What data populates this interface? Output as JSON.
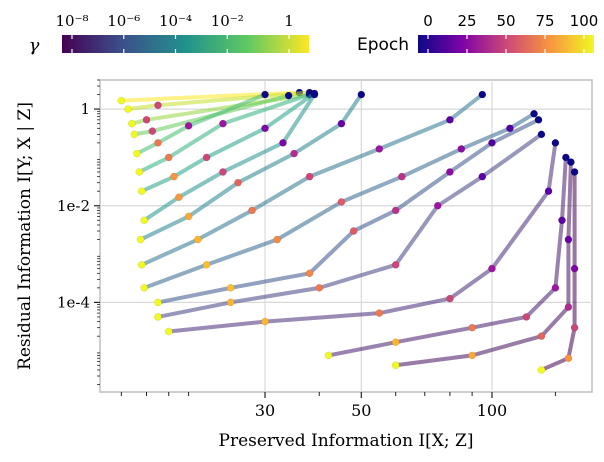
{
  "chart_data": {
    "type": "scatter",
    "xlabel": "Preserved Information I[X; Z]",
    "ylabel": "Residual Information I[Y; X | Z]",
    "x_scale": "log",
    "y_scale": "log",
    "xlim": [
      12.5,
      170
    ],
    "ylim": [
      1.4e-06,
      4
    ],
    "x_ticks": [
      30,
      50,
      100
    ],
    "x_tick_labels": [
      "30",
      "50",
      "100"
    ],
    "x_minor_ticks": [
      14,
      16,
      18,
      20,
      40,
      60,
      70,
      80,
      90,
      140
    ],
    "y_ticks": [
      1,
      0.01,
      0.0001
    ],
    "y_tick_labels": [
      "1",
      "1e-2",
      "1e-4"
    ],
    "grid": true,
    "colorbars": [
      {
        "label": "γ",
        "colormap": "viridis",
        "scale": "log",
        "tick_labels": [
          "10⁻⁸",
          "10⁻⁶",
          "10⁻⁴",
          "10⁻²",
          "1"
        ]
      },
      {
        "label": "Epoch",
        "colormap": "plasma",
        "scale": "linear",
        "tick_labels": [
          "0",
          "25",
          "50",
          "75",
          "100"
        ]
      }
    ],
    "series": [
      {
        "gamma_exp": 0,
        "points": [
          [
            14,
            1.5
          ],
          [
            36,
            2.2
          ]
        ]
      },
      {
        "gamma_exp": -0.7,
        "points": [
          [
            14.5,
            1.0
          ],
          [
            17,
            1.2
          ],
          [
            38,
            2.2
          ]
        ]
      },
      {
        "gamma_exp": -1.3,
        "points": [
          [
            14.8,
            0.5
          ],
          [
            16,
            0.6
          ],
          [
            38,
            2.0
          ]
        ]
      },
      {
        "gamma_exp": -1.9,
        "points": [
          [
            15.0,
            0.3
          ],
          [
            16.5,
            0.35
          ],
          [
            34,
            1.9
          ]
        ]
      },
      {
        "gamma_exp": -2.4,
        "points": [
          [
            15.2,
            0.12
          ],
          [
            17,
            0.2
          ],
          [
            20,
            0.45
          ],
          [
            30,
            2.0
          ]
        ]
      },
      {
        "gamma_exp": -2.9,
        "points": [
          [
            15.4,
            0.05
          ],
          [
            18,
            0.1
          ],
          [
            24,
            0.5
          ],
          [
            38,
            2.0
          ]
        ]
      },
      {
        "gamma_exp": -3.4,
        "points": [
          [
            15.6,
            0.02
          ],
          [
            18.5,
            0.04
          ],
          [
            22,
            0.1
          ],
          [
            30,
            0.4
          ],
          [
            39,
            2.1
          ]
        ]
      },
      {
        "gamma_exp": -3.9,
        "points": [
          [
            15.8,
            0.005
          ],
          [
            19,
            0.015
          ],
          [
            24,
            0.05
          ],
          [
            33,
            0.2
          ],
          [
            39,
            2.0
          ]
        ]
      },
      {
        "gamma_exp": -4.4,
        "points": [
          [
            15.5,
            0.002
          ],
          [
            20,
            0.006
          ],
          [
            26,
            0.03
          ],
          [
            35,
            0.12
          ],
          [
            45,
            0.5
          ],
          [
            50,
            2.0
          ]
        ]
      },
      {
        "gamma_exp": -4.9,
        "points": [
          [
            15.6,
            0.0006
          ],
          [
            21,
            0.002
          ],
          [
            28,
            0.008
          ],
          [
            38,
            0.04
          ],
          [
            55,
            0.15
          ],
          [
            80,
            0.6
          ],
          [
            95,
            2.0
          ]
        ]
      },
      {
        "gamma_exp": -5.4,
        "points": [
          [
            15.8,
            0.0002
          ],
          [
            22,
            0.0006
          ],
          [
            32,
            0.002
          ],
          [
            45,
            0.012
          ],
          [
            62,
            0.04
          ],
          [
            85,
            0.15
          ],
          [
            110,
            0.4
          ],
          [
            125,
            0.8
          ]
        ]
      },
      {
        "gamma_exp": -5.9,
        "points": [
          [
            17,
            0.0001
          ],
          [
            25,
            0.0002
          ],
          [
            38,
            0.0004
          ],
          [
            48,
            0.003
          ],
          [
            60,
            0.008
          ],
          [
            80,
            0.05
          ],
          [
            100,
            0.2
          ],
          [
            128,
            0.6
          ]
        ]
      },
      {
        "gamma_exp": -6.5,
        "points": [
          [
            17,
            5e-05
          ],
          [
            25,
            0.0001
          ],
          [
            40,
            0.0002
          ],
          [
            60,
            0.0006
          ],
          [
            75,
            0.01
          ],
          [
            95,
            0.04
          ],
          [
            130,
            0.3
          ]
        ]
      },
      {
        "gamma_exp": -7.0,
        "points": [
          [
            18,
            2.5e-05
          ],
          [
            30,
            4e-05
          ],
          [
            55,
            6e-05
          ],
          [
            80,
            0.00012
          ],
          [
            100,
            0.0005
          ],
          [
            135,
            0.02
          ],
          [
            140,
            0.2
          ]
        ]
      },
      {
        "gamma_exp": -7.4,
        "points": [
          [
            42,
            8e-06
          ],
          [
            60,
            1.5e-05
          ],
          [
            90,
            3e-05
          ],
          [
            120,
            5e-05
          ],
          [
            140,
            0.0002
          ],
          [
            145,
            0.005
          ],
          [
            148,
            0.1
          ]
        ]
      },
      {
        "gamma_exp": -7.7,
        "points": [
          [
            60,
            5e-06
          ],
          [
            90,
            8e-06
          ],
          [
            130,
            2e-05
          ],
          [
            150,
            8e-05
          ],
          [
            150,
            0.002
          ],
          [
            152,
            0.08
          ]
        ]
      },
      {
        "gamma_exp": -8.0,
        "points": [
          [
            130,
            4e-06
          ],
          [
            150,
            7e-06
          ],
          [
            155,
            3e-05
          ],
          [
            155,
            0.0005
          ],
          [
            155,
            0.05
          ]
        ]
      }
    ]
  }
}
